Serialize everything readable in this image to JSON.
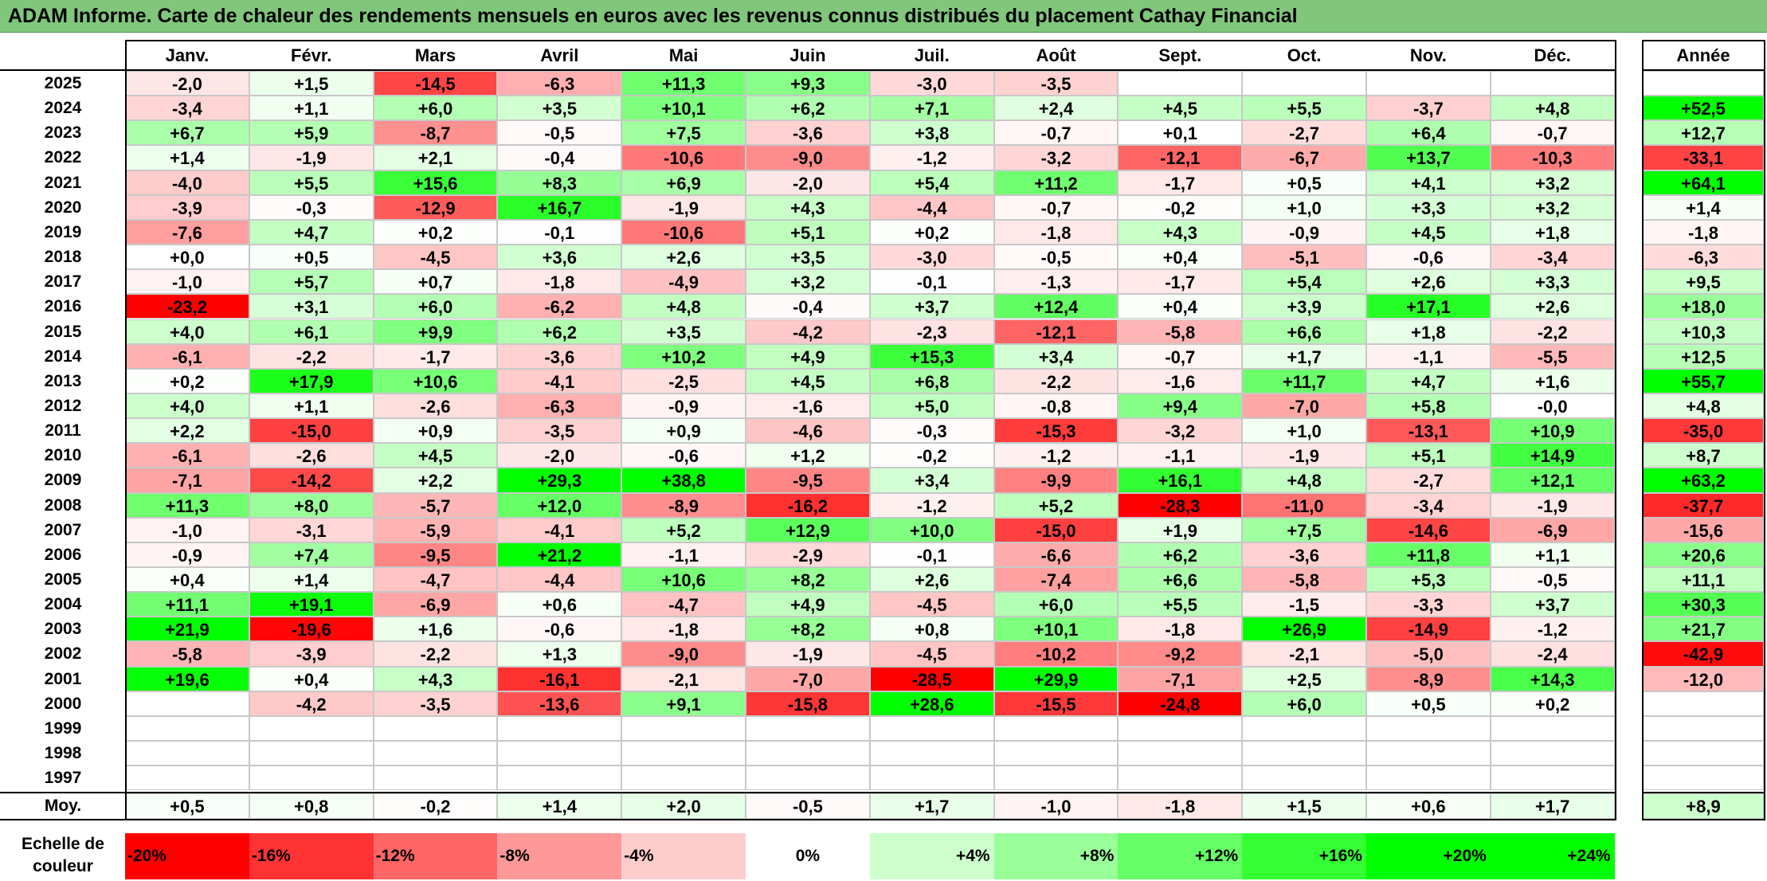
{
  "title": "ADAM Informe. Carte de chaleur des rendements mensuels en euros avec les revenus connus distribués du placement Cathay Financial",
  "chart_data": {
    "type": "heatmap",
    "months": [
      "Janv.",
      "Févr.",
      "Mars",
      "Avril",
      "Mai",
      "Juin",
      "Juil.",
      "Août",
      "Sept.",
      "Oct.",
      "Nov.",
      "Déc."
    ],
    "year_header": "Année",
    "avg_label": "Moy.",
    "rows": [
      {
        "year": "2025",
        "months": [
          "-2,0",
          "+1,5",
          "-14,5",
          "-6,3",
          "+11,3",
          "+9,3",
          "-3,0",
          "-3,5",
          "",
          "",
          "",
          ""
        ],
        "annual": ""
      },
      {
        "year": "2024",
        "months": [
          "-3,4",
          "+1,1",
          "+6,0",
          "+3,5",
          "+10,1",
          "+6,2",
          "+7,1",
          "+2,4",
          "+4,5",
          "+5,5",
          "-3,7",
          "+4,8"
        ],
        "annual": "+52,5"
      },
      {
        "year": "2023",
        "months": [
          "+6,7",
          "+5,9",
          "-8,7",
          "-0,5",
          "+7,5",
          "-3,6",
          "+3,8",
          "-0,7",
          "+0,1",
          "-2,7",
          "+6,4",
          "-0,7"
        ],
        "annual": "+12,7"
      },
      {
        "year": "2022",
        "months": [
          "+1,4",
          "-1,9",
          "+2,1",
          "-0,4",
          "-10,6",
          "-9,0",
          "-1,2",
          "-3,2",
          "-12,1",
          "-6,7",
          "+13,7",
          "-10,3"
        ],
        "annual": "-33,1"
      },
      {
        "year": "2021",
        "months": [
          "-4,0",
          "+5,5",
          "+15,6",
          "+8,3",
          "+6,9",
          "-2,0",
          "+5,4",
          "+11,2",
          "-1,7",
          "+0,5",
          "+4,1",
          "+3,2"
        ],
        "annual": "+64,1"
      },
      {
        "year": "2020",
        "months": [
          "-3,9",
          "-0,3",
          "-12,9",
          "+16,7",
          "-1,9",
          "+4,3",
          "-4,4",
          "-0,7",
          "-0,2",
          "+1,0",
          "+3,3",
          "+3,2"
        ],
        "annual": "+1,4"
      },
      {
        "year": "2019",
        "months": [
          "-7,6",
          "+4,7",
          "+0,2",
          "-0,1",
          "-10,6",
          "+5,1",
          "+0,2",
          "-1,8",
          "+4,3",
          "-0,9",
          "+4,5",
          "+1,8"
        ],
        "annual": "-1,8"
      },
      {
        "year": "2018",
        "months": [
          "+0,0",
          "+0,5",
          "-4,5",
          "+3,6",
          "+2,6",
          "+3,5",
          "-3,0",
          "-0,5",
          "+0,4",
          "-5,1",
          "-0,6",
          "-3,4"
        ],
        "annual": "-6,3"
      },
      {
        "year": "2017",
        "months": [
          "-1,0",
          "+5,7",
          "+0,7",
          "-1,8",
          "-4,9",
          "+3,2",
          "-0,1",
          "-1,3",
          "-1,7",
          "+5,4",
          "+2,6",
          "+3,3"
        ],
        "annual": "+9,5"
      },
      {
        "year": "2016",
        "months": [
          "-23,2",
          "+3,1",
          "+6,0",
          "-6,2",
          "+4,8",
          "-0,4",
          "+3,7",
          "+12,4",
          "+0,4",
          "+3,9",
          "+17,1",
          "+2,6"
        ],
        "annual": "+18,0"
      },
      {
        "year": "2015",
        "months": [
          "+4,0",
          "+6,1",
          "+9,9",
          "+6,2",
          "+3,5",
          "-4,2",
          "-2,3",
          "-12,1",
          "-5,8",
          "+6,6",
          "+1,8",
          "-2,2"
        ],
        "annual": "+10,3"
      },
      {
        "year": "2014",
        "months": [
          "-6,1",
          "-2,2",
          "-1,7",
          "-3,6",
          "+10,2",
          "+4,9",
          "+15,3",
          "+3,4",
          "-0,7",
          "+1,7",
          "-1,1",
          "-5,5"
        ],
        "annual": "+12,5"
      },
      {
        "year": "2013",
        "months": [
          "+0,2",
          "+17,9",
          "+10,6",
          "-4,1",
          "-2,5",
          "+4,5",
          "+6,8",
          "-2,2",
          "-1,6",
          "+11,7",
          "+4,7",
          "+1,6"
        ],
        "annual": "+55,7"
      },
      {
        "year": "2012",
        "months": [
          "+4,0",
          "+1,1",
          "-2,6",
          "-6,3",
          "-0,9",
          "-1,6",
          "+5,0",
          "-0,8",
          "+9,4",
          "-7,0",
          "+5,8",
          "-0,0"
        ],
        "annual": "+4,8"
      },
      {
        "year": "2011",
        "months": [
          "+2,2",
          "-15,0",
          "+0,9",
          "-3,5",
          "+0,9",
          "-4,6",
          "-0,3",
          "-15,3",
          "-3,2",
          "+1,0",
          "-13,1",
          "+10,9"
        ],
        "annual": "-35,0"
      },
      {
        "year": "2010",
        "months": [
          "-6,1",
          "-2,6",
          "+4,5",
          "-2,0",
          "-0,6",
          "+1,2",
          "-0,2",
          "-1,2",
          "-1,1",
          "-1,9",
          "+5,1",
          "+14,9"
        ],
        "annual": "+8,7"
      },
      {
        "year": "2009",
        "months": [
          "-7,1",
          "-14,2",
          "+2,2",
          "+29,3",
          "+38,8",
          "-9,5",
          "+3,4",
          "-9,9",
          "+16,1",
          "+4,8",
          "-2,7",
          "+12,1"
        ],
        "annual": "+63,2"
      },
      {
        "year": "2008",
        "months": [
          "+11,3",
          "+8,0",
          "-5,7",
          "+12,0",
          "-8,9",
          "-16,2",
          "-1,2",
          "+5,2",
          "-28,3",
          "-11,0",
          "-3,4",
          "-1,9"
        ],
        "annual": "-37,7"
      },
      {
        "year": "2007",
        "months": [
          "-1,0",
          "-3,1",
          "-5,9",
          "-4,1",
          "+5,2",
          "+12,9",
          "+10,0",
          "-15,0",
          "+1,9",
          "+7,5",
          "-14,6",
          "-6,9"
        ],
        "annual": "-15,6"
      },
      {
        "year": "2006",
        "months": [
          "-0,9",
          "+7,4",
          "-9,5",
          "+21,2",
          "-1,1",
          "-2,9",
          "-0,1",
          "-6,6",
          "+6,2",
          "-3,6",
          "+11,8",
          "+1,1"
        ],
        "annual": "+20,6"
      },
      {
        "year": "2005",
        "months": [
          "+0,4",
          "+1,4",
          "-4,7",
          "-4,4",
          "+10,6",
          "+8,2",
          "+2,6",
          "-7,4",
          "+6,6",
          "-5,8",
          "+5,3",
          "-0,5"
        ],
        "annual": "+11,1"
      },
      {
        "year": "2004",
        "months": [
          "+11,1",
          "+19,1",
          "-6,9",
          "+0,6",
          "-4,7",
          "+4,9",
          "-4,5",
          "+6,0",
          "+5,5",
          "-1,5",
          "-3,3",
          "+3,7"
        ],
        "annual": "+30,3"
      },
      {
        "year": "2003",
        "months": [
          "+21,9",
          "-19,6",
          "+1,6",
          "-0,6",
          "-1,8",
          "+8,2",
          "+0,8",
          "+10,1",
          "-1,8",
          "+26,9",
          "-14,9",
          "-1,2"
        ],
        "annual": "+21,7"
      },
      {
        "year": "2002",
        "months": [
          "-5,8",
          "-3,9",
          "-2,2",
          "+1,3",
          "-9,0",
          "-1,9",
          "-4,5",
          "-10,2",
          "-9,2",
          "-2,1",
          "-5,0",
          "-2,4"
        ],
        "annual": "-42,9"
      },
      {
        "year": "2001",
        "months": [
          "+19,6",
          "+0,4",
          "+4,3",
          "-16,1",
          "-2,1",
          "-7,0",
          "-28,5",
          "+29,9",
          "-7,1",
          "+2,5",
          "-8,9",
          "+14,3"
        ],
        "annual": "-12,0"
      },
      {
        "year": "2000",
        "months": [
          "",
          "-4,2",
          "-3,5",
          "-13,6",
          "+9,1",
          "-15,8",
          "+28,6",
          "-15,5",
          "-24,8",
          "+6,0",
          "+0,5",
          "+0,2"
        ],
        "annual": ""
      },
      {
        "year": "1999",
        "months": [
          "",
          "",
          "",
          "",
          "",
          "",
          "",
          "",
          "",
          "",
          "",
          ""
        ],
        "annual": ""
      },
      {
        "year": "1998",
        "months": [
          "",
          "",
          "",
          "",
          "",
          "",
          "",
          "",
          "",
          "",
          "",
          ""
        ],
        "annual": ""
      },
      {
        "year": "1997",
        "months": [
          "",
          "",
          "",
          "",
          "",
          "",
          "",
          "",
          "",
          "",
          "",
          ""
        ],
        "annual": ""
      }
    ],
    "averages": [
      "+0,5",
      "+0,8",
      "-0,2",
      "+1,4",
      "+2,0",
      "-0,5",
      "+1,7",
      "-1,0",
      "-1,8",
      "+1,5",
      "+0,6",
      "+1,7"
    ],
    "average_annual": "+8,9",
    "scale": {
      "label_line1": "Echelle de",
      "label_line2": "couleur",
      "steps": [
        "-20%",
        "-16%",
        "-12%",
        "-8%",
        "-4%",
        "0%",
        "+4%",
        "+8%",
        "+12%",
        "+16%",
        "+20%",
        "+24%"
      ],
      "values": [
        -20,
        -16,
        -12,
        -8,
        -4,
        0,
        4,
        8,
        12,
        16,
        20,
        24
      ]
    },
    "colors": {
      "min": "#ff0000",
      "zero": "#ffffff",
      "max": "#00ff00",
      "title_bg": "#80c77c"
    }
  }
}
